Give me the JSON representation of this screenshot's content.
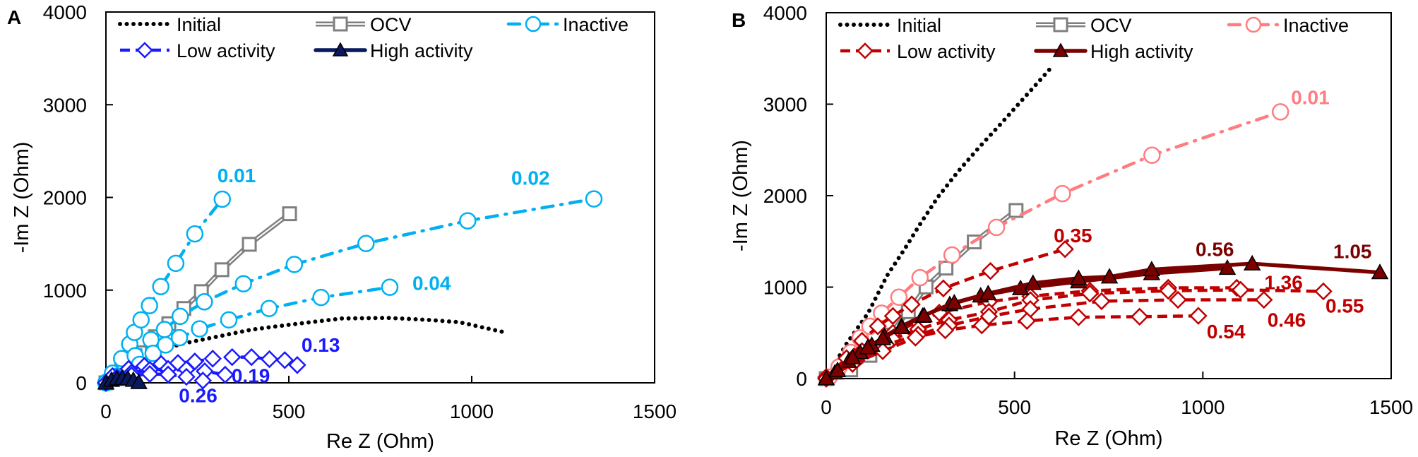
{
  "chart_data": [
    {
      "type": "line",
      "panel_label": "A",
      "xlabel": "Re Z (Ohm)",
      "ylabel": "-Im Z (Ohm)",
      "xlim": [
        0,
        1500
      ],
      "ylim": [
        0,
        4000
      ],
      "xticks": [
        0,
        500,
        1000,
        1500
      ],
      "yticks": [
        0,
        1000,
        2000,
        3000,
        4000
      ],
      "grid": false,
      "legend_placement": "top-inside",
      "legend": [
        {
          "key": "initial",
          "label": "Initial"
        },
        {
          "key": "ocv",
          "label": "OCV"
        },
        {
          "key": "inactive",
          "label": "Inactive"
        },
        {
          "key": "low",
          "label": "Low activity"
        },
        {
          "key": "high",
          "label": "High activity"
        }
      ],
      "colors": {
        "initial": "#000000",
        "ocv": "#7f7f7f",
        "inactive": "#00b0f0",
        "low": "#1a1aff",
        "high": "#0a1a5c"
      },
      "series": [
        {
          "group": "initial",
          "label": "",
          "points": [
            [
              0,
              0
            ],
            [
              55,
              167
            ],
            [
              117,
              292
            ],
            [
              203,
              418
            ],
            [
              302,
              497
            ],
            [
              400,
              575
            ],
            [
              511,
              632
            ],
            [
              647,
              695
            ],
            [
              770,
              701
            ],
            [
              881,
              679
            ],
            [
              967,
              654
            ],
            [
              1084,
              550
            ]
          ]
        },
        {
          "group": "ocv",
          "label": "",
          "points": [
            [
              0,
              0
            ],
            [
              43,
              135
            ],
            [
              92,
              324
            ],
            [
              135,
              497
            ],
            [
              172,
              638
            ],
            [
              213,
              802
            ],
            [
              261,
              984
            ],
            [
              317,
              1220
            ],
            [
              392,
              1494
            ],
            [
              502,
              1824
            ]
          ]
        },
        {
          "group": "inactive",
          "label": "0.01",
          "points": [
            [
              2,
              9
            ],
            [
              18,
              104
            ],
            [
              43,
              261
            ],
            [
              65,
              418
            ],
            [
              78,
              544
            ],
            [
              96,
              679
            ],
            [
              119,
              833
            ],
            [
              150,
              1038
            ],
            [
              191,
              1289
            ],
            [
              243,
              1607
            ],
            [
              318,
              1981
            ]
          ]
        },
        {
          "group": "inactive",
          "label": "0.02",
          "points": [
            [
              0,
              0
            ],
            [
              31,
              72
            ],
            [
              80,
              292
            ],
            [
              123,
              465
            ],
            [
              160,
              575
            ],
            [
              203,
              717
            ],
            [
              269,
              874
            ],
            [
              376,
              1069
            ],
            [
              515,
              1277
            ],
            [
              711,
              1503
            ],
            [
              989,
              1748
            ],
            [
              1334,
              1984
            ]
          ]
        },
        {
          "group": "inactive",
          "label": "0.04",
          "points": [
            [
              0,
              0
            ],
            [
              43,
              57
            ],
            [
              92,
              198
            ],
            [
              129,
              318
            ],
            [
              163,
              409
            ],
            [
              201,
              487
            ],
            [
              256,
              582
            ],
            [
              336,
              679
            ],
            [
              446,
              802
            ],
            [
              588,
              921
            ],
            [
              776,
              1031
            ]
          ]
        },
        {
          "group": "low",
          "label": "0.13",
          "points": [
            [
              0,
              0
            ],
            [
              18,
              72
            ],
            [
              62,
              151
            ],
            [
              105,
              182
            ],
            [
              151,
              204
            ],
            [
              197,
              214
            ],
            [
              243,
              230
            ],
            [
              292,
              261
            ],
            [
              345,
              277
            ],
            [
              398,
              277
            ],
            [
              447,
              255
            ],
            [
              489,
              245
            ],
            [
              523,
              192
            ]
          ]
        },
        {
          "group": "low",
          "label": "0.19",
          "points": [
            [
              0,
              0
            ],
            [
              30,
              60
            ],
            [
              70,
              110
            ],
            [
              120,
              140
            ],
            [
              170,
              150
            ],
            [
              220,
              145
            ],
            [
              270,
              125
            ],
            [
              326,
              88
            ]
          ]
        },
        {
          "group": "low",
          "label": "0.26",
          "points": [
            [
              0,
              0
            ],
            [
              30,
              50
            ],
            [
              70,
              80
            ],
            [
              120,
              95
            ],
            [
              170,
              90
            ],
            [
              220,
              65
            ],
            [
              265,
              25
            ]
          ]
        },
        {
          "group": "high",
          "label": "",
          "points": [
            [
              0,
              0
            ],
            [
              15,
              30
            ],
            [
              30,
              45
            ],
            [
              45,
              50
            ],
            [
              60,
              45
            ],
            [
              75,
              30
            ],
            [
              90,
              5
            ]
          ]
        }
      ]
    },
    {
      "type": "line",
      "panel_label": "B",
      "xlabel": "Re Z (Ohm)",
      "ylabel": "-Im Z (Ohm)",
      "xlim": [
        0,
        1500
      ],
      "ylim": [
        0,
        4000
      ],
      "xticks": [
        0,
        500,
        1000,
        1500
      ],
      "yticks": [
        0,
        1000,
        2000,
        3000,
        4000
      ],
      "grid": false,
      "legend_placement": "top-inside",
      "legend": [
        {
          "key": "initial",
          "label": "Initial"
        },
        {
          "key": "ocv",
          "label": "OCV"
        },
        {
          "key": "inactive",
          "label": "Inactive"
        },
        {
          "key": "low",
          "label": "Low activity"
        },
        {
          "key": "high",
          "label": "High activity"
        }
      ],
      "colors": {
        "initial": "#000000",
        "ocv": "#7f7f7f",
        "inactive": "#ff7c80",
        "low": "#c00000",
        "high": "#7b0000"
      },
      "series": [
        {
          "group": "initial",
          "label": "",
          "points": [
            [
              0,
              0
            ],
            [
              54,
              382
            ],
            [
              111,
              715
            ],
            [
              162,
              1129
            ],
            [
              208,
              1415
            ],
            [
              252,
              1707
            ],
            [
              297,
              1987
            ],
            [
              350,
              2264
            ],
            [
              406,
              2528
            ],
            [
              463,
              2782
            ],
            [
              519,
              3040
            ],
            [
              593,
              3380
            ]
          ]
        },
        {
          "group": "ocv",
          "label": "",
          "points": [
            [
              0,
              0
            ],
            [
              65,
              95
            ],
            [
              116,
              254
            ],
            [
              167,
              477
            ],
            [
              218,
              731
            ],
            [
              265,
              1002
            ],
            [
              318,
              1208
            ],
            [
              393,
              1494
            ],
            [
              504,
              1838
            ]
          ]
        },
        {
          "group": "inactive",
          "label": "0.01",
          "points": [
            [
              8,
              16
            ],
            [
              34,
              127
            ],
            [
              65,
              286
            ],
            [
              90,
              445
            ],
            [
              116,
              572
            ],
            [
              147,
              715
            ],
            [
              193,
              890
            ],
            [
              249,
              1103
            ],
            [
              334,
              1351
            ],
            [
              452,
              1653
            ],
            [
              627,
              2022
            ],
            [
              865,
              2442
            ],
            [
              1206,
              2916
            ]
          ]
        },
        {
          "group": "low",
          "label": "0.35",
          "points": [
            [
              0,
              16
            ],
            [
              54,
              223
            ],
            [
              95,
              413
            ],
            [
              137,
              572
            ],
            [
              177,
              684
            ],
            [
              227,
              811
            ],
            [
              311,
              986
            ],
            [
              436,
              1176
            ],
            [
              634,
              1415
            ]
          ]
        },
        {
          "group": "low",
          "label": "1.36",
          "points": [
            [
              0,
              0
            ],
            [
              95,
              300
            ],
            [
              177,
              500
            ],
            [
              300,
              720
            ],
            [
              432,
              840
            ],
            [
              542,
              900
            ],
            [
              700,
              960
            ],
            [
              908,
              992
            ],
            [
              1090,
              992
            ]
          ]
        },
        {
          "group": "low",
          "label": "0.55",
          "points": [
            [
              0,
              0
            ],
            [
              90,
              260
            ],
            [
              177,
              430
            ],
            [
              244,
              540
            ],
            [
              326,
              640
            ],
            [
              432,
              730
            ],
            [
              542,
              858
            ],
            [
              700,
              930
            ],
            [
              908,
              960
            ],
            [
              1100,
              970
            ],
            [
              1320,
              954
            ]
          ]
        },
        {
          "group": "low",
          "label": "0.46",
          "points": [
            [
              0,
              0
            ],
            [
              80,
              200
            ],
            [
              160,
              370
            ],
            [
              244,
              480
            ],
            [
              326,
              580
            ],
            [
              432,
              680
            ],
            [
              542,
              760
            ],
            [
              731,
              846
            ],
            [
              934,
              861
            ],
            [
              1162,
              861
            ]
          ]
        },
        {
          "group": "low",
          "label": "0.54",
          "points": [
            [
              0,
              0
            ],
            [
              70,
              160
            ],
            [
              150,
              300
            ],
            [
              237,
              448
            ],
            [
              316,
              528
            ],
            [
              413,
              582
            ],
            [
              533,
              630
            ],
            [
              670,
              671
            ],
            [
              832,
              677
            ],
            [
              988,
              686
            ]
          ]
        },
        {
          "group": "high",
          "label": "0.56",
          "points": [
            [
              0,
              0
            ],
            [
              23,
              64
            ],
            [
              59,
              191
            ],
            [
              90,
              286
            ],
            [
              121,
              366
            ],
            [
              155,
              461
            ],
            [
              200,
              572
            ],
            [
              256,
              684
            ],
            [
              328,
              811
            ],
            [
              410,
              906
            ],
            [
              516,
              986
            ],
            [
              670,
              1060
            ],
            [
              864,
              1150
            ],
            [
              1065,
              1208
            ]
          ]
        },
        {
          "group": "high",
          "label": "1.05",
          "points": [
            [
              0,
              0
            ],
            [
              30,
              90
            ],
            [
              70,
              230
            ],
            [
              110,
              340
            ],
            [
              150,
              440
            ],
            [
              200,
              560
            ],
            [
              260,
              690
            ],
            [
              340,
              830
            ],
            [
              430,
              930
            ],
            [
              549,
              1043
            ],
            [
              670,
              1097
            ],
            [
              752,
              1113
            ],
            [
              864,
              1192
            ],
            [
              1131,
              1256
            ],
            [
              1470,
              1161
            ]
          ]
        }
      ]
    }
  ]
}
